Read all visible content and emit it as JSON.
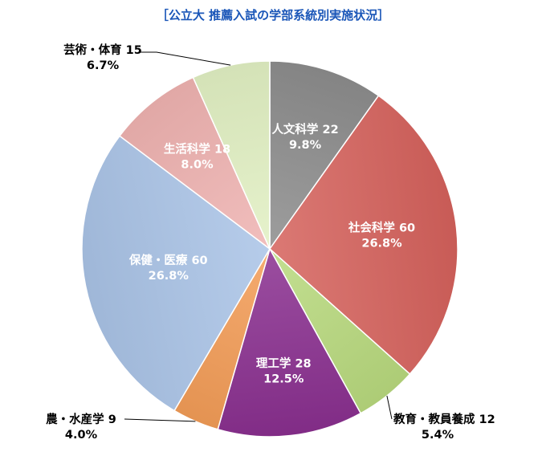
{
  "chart_data": {
    "type": "pie",
    "title": "［公立大 推薦入試の学部系統別実施状況］",
    "slices": [
      {
        "name": "人文科学",
        "value": 22,
        "percent": "9.8%",
        "color": "#8c8c8c"
      },
      {
        "name": "社会科学",
        "value": 60,
        "percent": "26.8%",
        "color": "#d5615c"
      },
      {
        "name": "教育・教員養成",
        "value": 12,
        "percent": "5.4%",
        "color": "#b8d97d"
      },
      {
        "name": "理工学",
        "value": 28,
        "percent": "12.5%",
        "color": "#892f8f"
      },
      {
        "name": "農・水産学",
        "value": 9,
        "percent": "4.0%",
        "color": "#f39c57"
      },
      {
        "name": "保健・医療",
        "value": 60,
        "percent": "26.8%",
        "color": "#a9c3e6"
      },
      {
        "name": "生活科学",
        "value": 18,
        "percent": "8.0%",
        "color": "#efb3b1"
      },
      {
        "name": "芸術・体育",
        "value": 15,
        "percent": "6.7%",
        "color": "#e2f0c3"
      }
    ],
    "start": "top, clockwise",
    "legend": "none"
  }
}
